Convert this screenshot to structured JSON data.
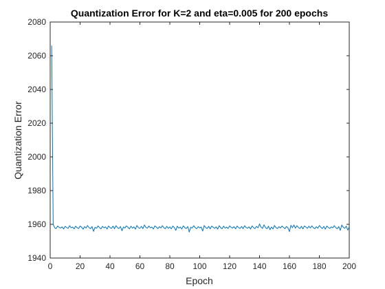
{
  "chart_data": {
    "type": "line",
    "title": "Quantization Error for K=2 and eta=0.005 for 200 epochs",
    "xlabel": "Epoch",
    "ylabel": "Quantization Error",
    "xlim": [
      0,
      200
    ],
    "ylim": [
      1940,
      2080
    ],
    "x_ticks": [
      0,
      20,
      40,
      60,
      80,
      100,
      120,
      140,
      160,
      180,
      200
    ],
    "y_ticks": [
      1940,
      1960,
      1980,
      2000,
      2020,
      2040,
      2060,
      2080
    ],
    "grid": false,
    "legend": "none",
    "series": [
      {
        "color": "#0072bd",
        "x": [
          1,
          2,
          3,
          4,
          5,
          6,
          7,
          8,
          9,
          10,
          11,
          12,
          13,
          14,
          15,
          16,
          17,
          18,
          19,
          20,
          21,
          22,
          23,
          24,
          25,
          26,
          27,
          28,
          29,
          30,
          31,
          32,
          33,
          34,
          35,
          36,
          37,
          38,
          39,
          40,
          41,
          42,
          43,
          44,
          45,
          46,
          47,
          48,
          49,
          50,
          51,
          52,
          53,
          54,
          55,
          56,
          57,
          58,
          59,
          60,
          61,
          62,
          63,
          64,
          65,
          66,
          67,
          68,
          69,
          70,
          71,
          72,
          73,
          74,
          75,
          76,
          77,
          78,
          79,
          80,
          81,
          82,
          83,
          84,
          85,
          86,
          87,
          88,
          89,
          90,
          91,
          92,
          93,
          94,
          95,
          96,
          97,
          98,
          99,
          100,
          101,
          102,
          103,
          104,
          105,
          106,
          107,
          108,
          109,
          110,
          111,
          112,
          113,
          114,
          115,
          116,
          117,
          118,
          119,
          120,
          121,
          122,
          123,
          124,
          125,
          126,
          127,
          128,
          129,
          130,
          131,
          132,
          133,
          134,
          135,
          136,
          137,
          138,
          139,
          140,
          141,
          142,
          143,
          144,
          145,
          146,
          147,
          148,
          149,
          150,
          151,
          152,
          153,
          154,
          155,
          156,
          157,
          158,
          159,
          160,
          161,
          162,
          163,
          164,
          165,
          166,
          167,
          168,
          169,
          170,
          171,
          172,
          173,
          174,
          175,
          176,
          177,
          178,
          179,
          180,
          181,
          182,
          183,
          184,
          185,
          186,
          187,
          188,
          189,
          190,
          191,
          192,
          193,
          194,
          195,
          196,
          197,
          198,
          199,
          200
        ],
        "values": [
          2066,
          1960,
          1958,
          1957.5,
          1959,
          1958.2,
          1957.8,
          1958.5,
          1957.2,
          1958.8,
          1958.1,
          1957.6,
          1959.2,
          1957.9,
          1958.4,
          1957.3,
          1958.9,
          1958,
          1957.5,
          1959,
          1958.3,
          1957.1,
          1958.6,
          1957.8,
          1959.3,
          1958,
          1957.4,
          1958.7,
          1955.8,
          1958.2,
          1957.7,
          1959.1,
          1958,
          1957.3,
          1958.8,
          1957.9,
          1958.5,
          1957.2,
          1959,
          1958.1,
          1957.6,
          1958.9,
          1957.4,
          1959.2,
          1958,
          1957.5,
          1958.7,
          1956.2,
          1958.4,
          1957.8,
          1959.1,
          1958.2,
          1957.3,
          1958.9,
          1957.7,
          1958.5,
          1957.1,
          1959.3,
          1958,
          1957.6,
          1958.8,
          1957.4,
          1959.6,
          1958.2,
          1957.7,
          1959,
          1957.9,
          1958.4,
          1957.2,
          1959.1,
          1958.3,
          1957.5,
          1958.6,
          1957.8,
          1959.2,
          1958,
          1957.4,
          1958.8,
          1957.6,
          1958.5,
          1957.3,
          1959,
          1958.1,
          1956.4,
          1958.9,
          1957.7,
          1958.4,
          1957.2,
          1959.1,
          1958,
          1957.5,
          1958.7,
          1955.4,
          1958.3,
          1957.8,
          1959.2,
          1958,
          1957.4,
          1958.6,
          1957.9,
          1958.4,
          1956,
          1959.3,
          1958.1,
          1957.5,
          1958.8,
          1957.3,
          1959,
          1958.2,
          1957.6,
          1958.5,
          1957.1,
          1959.2,
          1958,
          1957.4,
          1958.9,
          1957.7,
          1958.3,
          1957.5,
          1959.1,
          1958.2,
          1957.8,
          1958.6,
          1957.3,
          1959,
          1958,
          1957.6,
          1958.7,
          1957.4,
          1959.2,
          1958.1,
          1957.7,
          1958.5,
          1957.2,
          1959.1,
          1958,
          1957.5,
          1958.8,
          1957.9,
          1960.2,
          1958.3,
          1957.6,
          1959.7,
          1958,
          1957.4,
          1958.9,
          1956.8,
          1958.4,
          1957.2,
          1959.3,
          1958.1,
          1957.5,
          1958.6,
          1957.8,
          1959,
          1958.2,
          1957.4,
          1958.7,
          1957.9,
          1955.7,
          1959.4,
          1958,
          1959.6,
          1957.7,
          1959.2,
          1958.1,
          1957.5,
          1958.8,
          1957.3,
          1959,
          1958.4,
          1957.6,
          1958.9,
          1957.8,
          1959.1,
          1958,
          1957.4,
          1958.6,
          1957.7,
          1959.3,
          1958.2,
          1957.5,
          1958.8,
          1957.1,
          1959,
          1958.1,
          1957.6,
          1958.5,
          1957.9,
          1959.2,
          1958,
          1957.4,
          1958.7,
          1956.4,
          1959.6,
          1958.2,
          1957.6,
          1958.9,
          1956.6,
          1958.4
        ]
      }
    ]
  }
}
